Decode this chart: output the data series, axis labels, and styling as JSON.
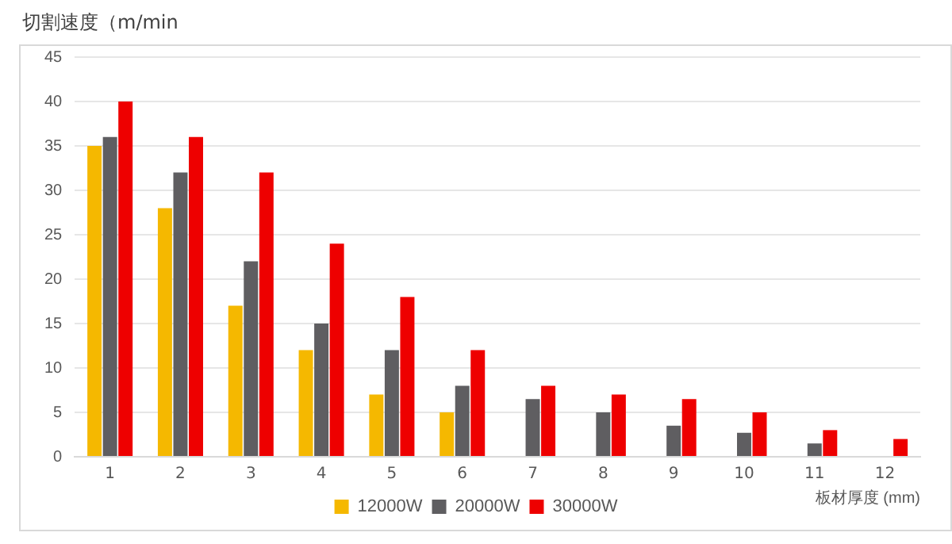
{
  "chart_data": {
    "type": "bar",
    "title": "切割速度（m/min",
    "xlabel": "板材厚度 (mm)",
    "categories": [
      "1",
      "2",
      "3",
      "4",
      "5",
      "6",
      "7",
      "8",
      "9",
      "10",
      "11",
      "12"
    ],
    "series": [
      {
        "name": "12000W",
        "color": "#f5b800",
        "values": [
          35,
          28,
          17,
          12,
          7,
          5,
          null,
          null,
          null,
          null,
          null,
          null
        ]
      },
      {
        "name": "20000W",
        "color": "#5f5e61",
        "values": [
          36,
          32,
          22,
          15,
          12,
          8,
          6.5,
          5,
          3.5,
          2.7,
          1.5,
          null
        ]
      },
      {
        "name": "30000W",
        "color": "#ee0000",
        "values": [
          40,
          36,
          32,
          24,
          18,
          12,
          8,
          7,
          6.5,
          5,
          3,
          2
        ]
      }
    ],
    "ylim": [
      0,
      45
    ],
    "yticks": [
      0,
      5,
      10,
      15,
      20,
      25,
      30,
      35,
      40,
      45
    ],
    "grid": "y",
    "legend": "bottom"
  }
}
